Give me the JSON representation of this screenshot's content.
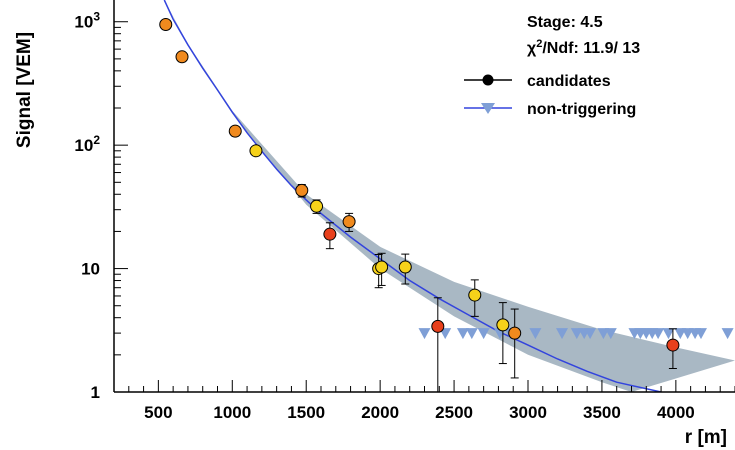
{
  "chart_data": {
    "type": "scatter",
    "title": "",
    "xlabel": "r [m]",
    "ylabel": "Signal [VEM]",
    "x_scale": "linear",
    "y_scale": "log",
    "xlim": [
      200,
      4400
    ],
    "ylim": [
      1,
      1500
    ],
    "x_ticks": [
      500,
      1000,
      1500,
      2000,
      2500,
      3000,
      3500,
      4000
    ],
    "x_tick_labels": [
      "500",
      "1000",
      "1500",
      "2000",
      "2500",
      "3000",
      "3500",
      "4000"
    ],
    "y_ticks": [
      {
        "value": 1,
        "label": "1",
        "sup": ""
      },
      {
        "value": 10,
        "label": "10",
        "sup": ""
      },
      {
        "value": 100,
        "label": "10",
        "sup": "2"
      },
      {
        "value": 1000,
        "label": "10",
        "sup": "3"
      }
    ],
    "annotations": {
      "stage": "Stage: 4.5",
      "chi2_symbol": "χ",
      "chi2_sup": "2",
      "chi2_rest": "/Ndf: 11.9/ 13"
    },
    "legend": {
      "position": "top-right",
      "candidates_label": "candidates",
      "nontrig_label": "non-triggering"
    },
    "colors": {
      "fit_line": "#3344dd",
      "band": "#a9b8c4",
      "nontrig": "#7f9fd6",
      "orange": "#f08a1e",
      "yellow": "#f6d21a",
      "red": "#e8401c"
    },
    "fit": {
      "series": [
        {
          "x": 540,
          "y": 1500
        },
        {
          "x": 600,
          "y": 1050
        },
        {
          "x": 700,
          "y": 650
        },
        {
          "x": 800,
          "y": 420
        },
        {
          "x": 900,
          "y": 280
        },
        {
          "x": 1000,
          "y": 185
        },
        {
          "x": 1100,
          "y": 126
        },
        {
          "x": 1200,
          "y": 89
        },
        {
          "x": 1300,
          "y": 64
        },
        {
          "x": 1400,
          "y": 47
        },
        {
          "x": 1500,
          "y": 36
        },
        {
          "x": 1600,
          "y": 28
        },
        {
          "x": 1800,
          "y": 18
        },
        {
          "x": 2000,
          "y": 12
        },
        {
          "x": 2200,
          "y": 8
        },
        {
          "x": 2400,
          "y": 5.7
        },
        {
          "x": 2600,
          "y": 4.2
        },
        {
          "x": 2800,
          "y": 3.1
        },
        {
          "x": 3000,
          "y": 2.4
        },
        {
          "x": 3200,
          "y": 1.85
        },
        {
          "x": 3400,
          "y": 1.47
        },
        {
          "x": 3600,
          "y": 1.2
        },
        {
          "x": 3900,
          "y": 1.0
        }
      ],
      "band_upper": [
        {
          "x": 540,
          "y": 1500
        },
        {
          "x": 700,
          "y": 660
        },
        {
          "x": 1000,
          "y": 190
        },
        {
          "x": 1500,
          "y": 40
        },
        {
          "x": 2000,
          "y": 15
        },
        {
          "x": 2500,
          "y": 7.8
        },
        {
          "x": 3000,
          "y": 4.9
        },
        {
          "x": 3500,
          "y": 3.2
        },
        {
          "x": 4000,
          "y": 2.3
        },
        {
          "x": 4400,
          "y": 1.8
        }
      ],
      "band_lower": [
        {
          "x": 540,
          "y": 1500
        },
        {
          "x": 700,
          "y": 640
        },
        {
          "x": 1000,
          "y": 180
        },
        {
          "x": 1500,
          "y": 33
        },
        {
          "x": 2000,
          "y": 10
        },
        {
          "x": 2500,
          "y": 4.1
        },
        {
          "x": 3000,
          "y": 2
        },
        {
          "x": 3500,
          "y": 1.2
        },
        {
          "x": 3700,
          "y": 1
        }
      ]
    },
    "candidates": [
      {
        "x": 550,
        "y": 950,
        "err": 0,
        "color": "orange"
      },
      {
        "x": 660,
        "y": 520,
        "err": 0,
        "color": "orange"
      },
      {
        "x": 1020,
        "y": 130,
        "err": 0,
        "color": "orange"
      },
      {
        "x": 1160,
        "y": 90,
        "err": 0,
        "color": "yellow"
      },
      {
        "x": 1470,
        "y": 43,
        "err": 5,
        "color": "orange"
      },
      {
        "x": 1570,
        "y": 32,
        "err": 4,
        "color": "yellow"
      },
      {
        "x": 1660,
        "y": 19,
        "err": 4.5,
        "color": "red"
      },
      {
        "x": 1790,
        "y": 24,
        "err": 4,
        "color": "orange"
      },
      {
        "x": 1990,
        "y": 10,
        "err": 3,
        "color": "yellow"
      },
      {
        "x": 2010,
        "y": 10.3,
        "err": 3,
        "color": "yellow"
      },
      {
        "x": 2170,
        "y": 10.3,
        "err": 2.8,
        "color": "yellow"
      },
      {
        "x": 2390,
        "y": 3.4,
        "err": 2.4,
        "color": "red"
      },
      {
        "x": 2640,
        "y": 6.1,
        "err": 2,
        "color": "yellow"
      },
      {
        "x": 2830,
        "y": 3.5,
        "err": 1.8,
        "color": "yellow"
      },
      {
        "x": 2910,
        "y": 3.0,
        "err": 1.7,
        "color": "orange"
      },
      {
        "x": 3980,
        "y": 2.4,
        "err": 0.85,
        "color": "red"
      }
    ],
    "non_triggering": [
      {
        "x": 2300,
        "y": 3.0
      },
      {
        "x": 2440,
        "y": 3.0
      },
      {
        "x": 2560,
        "y": 3.0
      },
      {
        "x": 2620,
        "y": 3.0
      },
      {
        "x": 2700,
        "y": 3.0
      },
      {
        "x": 2810,
        "y": 3.0
      },
      {
        "x": 2880,
        "y": 3.0
      },
      {
        "x": 3050,
        "y": 3.0
      },
      {
        "x": 3230,
        "y": 3.0
      },
      {
        "x": 3330,
        "y": 3.0
      },
      {
        "x": 3380,
        "y": 3.0
      },
      {
        "x": 3420,
        "y": 3.0
      },
      {
        "x": 3510,
        "y": 3.0
      },
      {
        "x": 3560,
        "y": 3.0
      },
      {
        "x": 3720,
        "y": 3.0
      },
      {
        "x": 3760,
        "y": 3.0
      },
      {
        "x": 3800,
        "y": 3.0
      },
      {
        "x": 3840,
        "y": 3.0
      },
      {
        "x": 3880,
        "y": 3.0
      },
      {
        "x": 3950,
        "y": 3.0
      },
      {
        "x": 4030,
        "y": 3.0
      },
      {
        "x": 4080,
        "y": 3.0
      },
      {
        "x": 4130,
        "y": 3.0
      },
      {
        "x": 4170,
        "y": 3.0
      },
      {
        "x": 4350,
        "y": 3.0
      }
    ]
  }
}
